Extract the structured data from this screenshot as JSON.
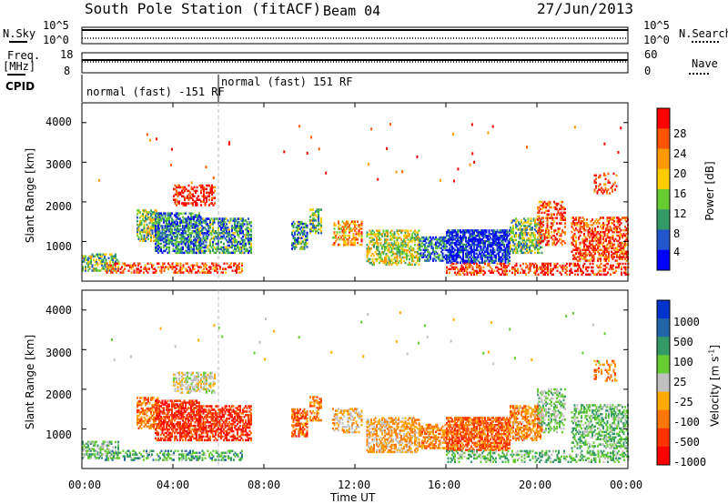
{
  "header": {
    "station": "South Pole Station (fitACF)",
    "beam": "Beam 04",
    "date": "27/Jun/2013"
  },
  "sky_panel": {
    "left_label": "N.Sky",
    "left_ticks": [
      "10^5",
      "10^0"
    ],
    "right_label": "N.Search",
    "right_ticks": [
      "10^5",
      "10^0"
    ]
  },
  "freq_panel": {
    "left_label_1": "Freq.",
    "left_label_2": "[MHz]",
    "left_ticks": [
      "18",
      "8"
    ],
    "right_label": "Nave",
    "right_ticks": [
      "60",
      "0"
    ]
  },
  "cpid": {
    "label": "CPID",
    "segments": [
      "normal (fast) -151 RF",
      "normal (fast) 151 RF"
    ]
  },
  "chart_data": [
    {
      "type": "heatmap",
      "title": "",
      "xlabel": "",
      "ylabel": "Slant Range [km]",
      "y_ticks": [
        "4000",
        "3000",
        "2000",
        "1000"
      ],
      "ylim": [
        0,
        4500
      ],
      "xlim": [
        0,
        24
      ],
      "colorbar": {
        "label": "Power [dB]",
        "ticks": [
          "28",
          "24",
          "20",
          "16",
          "12",
          "8",
          "4"
        ],
        "colors": [
          "#ff0000",
          "#ff5500",
          "#ff9900",
          "#ffcc00",
          "#66cc33",
          "#339966",
          "#2255cc",
          "#0000ff"
        ]
      },
      "description_points": [
        {
          "t": 0.2,
          "r": [
            300,
            700
          ],
          "v": 20
        },
        {
          "t": 3.5,
          "r": [
            800,
            1500
          ],
          "v": 24
        },
        {
          "t": 4.5,
          "r": [
            900,
            1600
          ],
          "v": 26
        },
        {
          "t": 10.0,
          "r": [
            900,
            1400
          ],
          "v": 22
        },
        {
          "t": 17.5,
          "r": [
            500,
            1100
          ],
          "v": 28
        },
        {
          "t": 19.0,
          "r": [
            700,
            1300
          ],
          "v": 20
        }
      ]
    },
    {
      "type": "heatmap",
      "title": "",
      "xlabel": "Time UT",
      "ylabel": "Slant Range [km]",
      "x_ticks": [
        "00:00",
        "04:00",
        "08:00",
        "12:00",
        "16:00",
        "20:00",
        "00:00"
      ],
      "y_ticks": [
        "4000",
        "3000",
        "2000",
        "1000"
      ],
      "ylim": [
        0,
        4500
      ],
      "xlim": [
        0,
        24
      ],
      "colorbar": {
        "label": "Velocity [m s",
        "label_sup": "-1",
        "label_end": "]",
        "ticks": [
          "1000",
          "500",
          "100",
          "25",
          "-25",
          "-100",
          "-500",
          "-1000"
        ],
        "colors": [
          "#0033cc",
          "#2266aa",
          "#339966",
          "#66cc33",
          "#c0c0c0",
          "#ffaa00",
          "#ff7700",
          "#ff3300",
          "#ff0000"
        ]
      },
      "description_points": [
        {
          "t": 4.5,
          "r": [
            1000,
            1800
          ],
          "v": -300
        },
        {
          "t": 4.5,
          "r": [
            2000,
            2300
          ],
          "v": 10
        },
        {
          "t": 16.5,
          "r": [
            700,
            1300
          ],
          "v": -200
        },
        {
          "t": 22.0,
          "r": [
            500,
            1200
          ],
          "v": 200
        }
      ]
    }
  ]
}
